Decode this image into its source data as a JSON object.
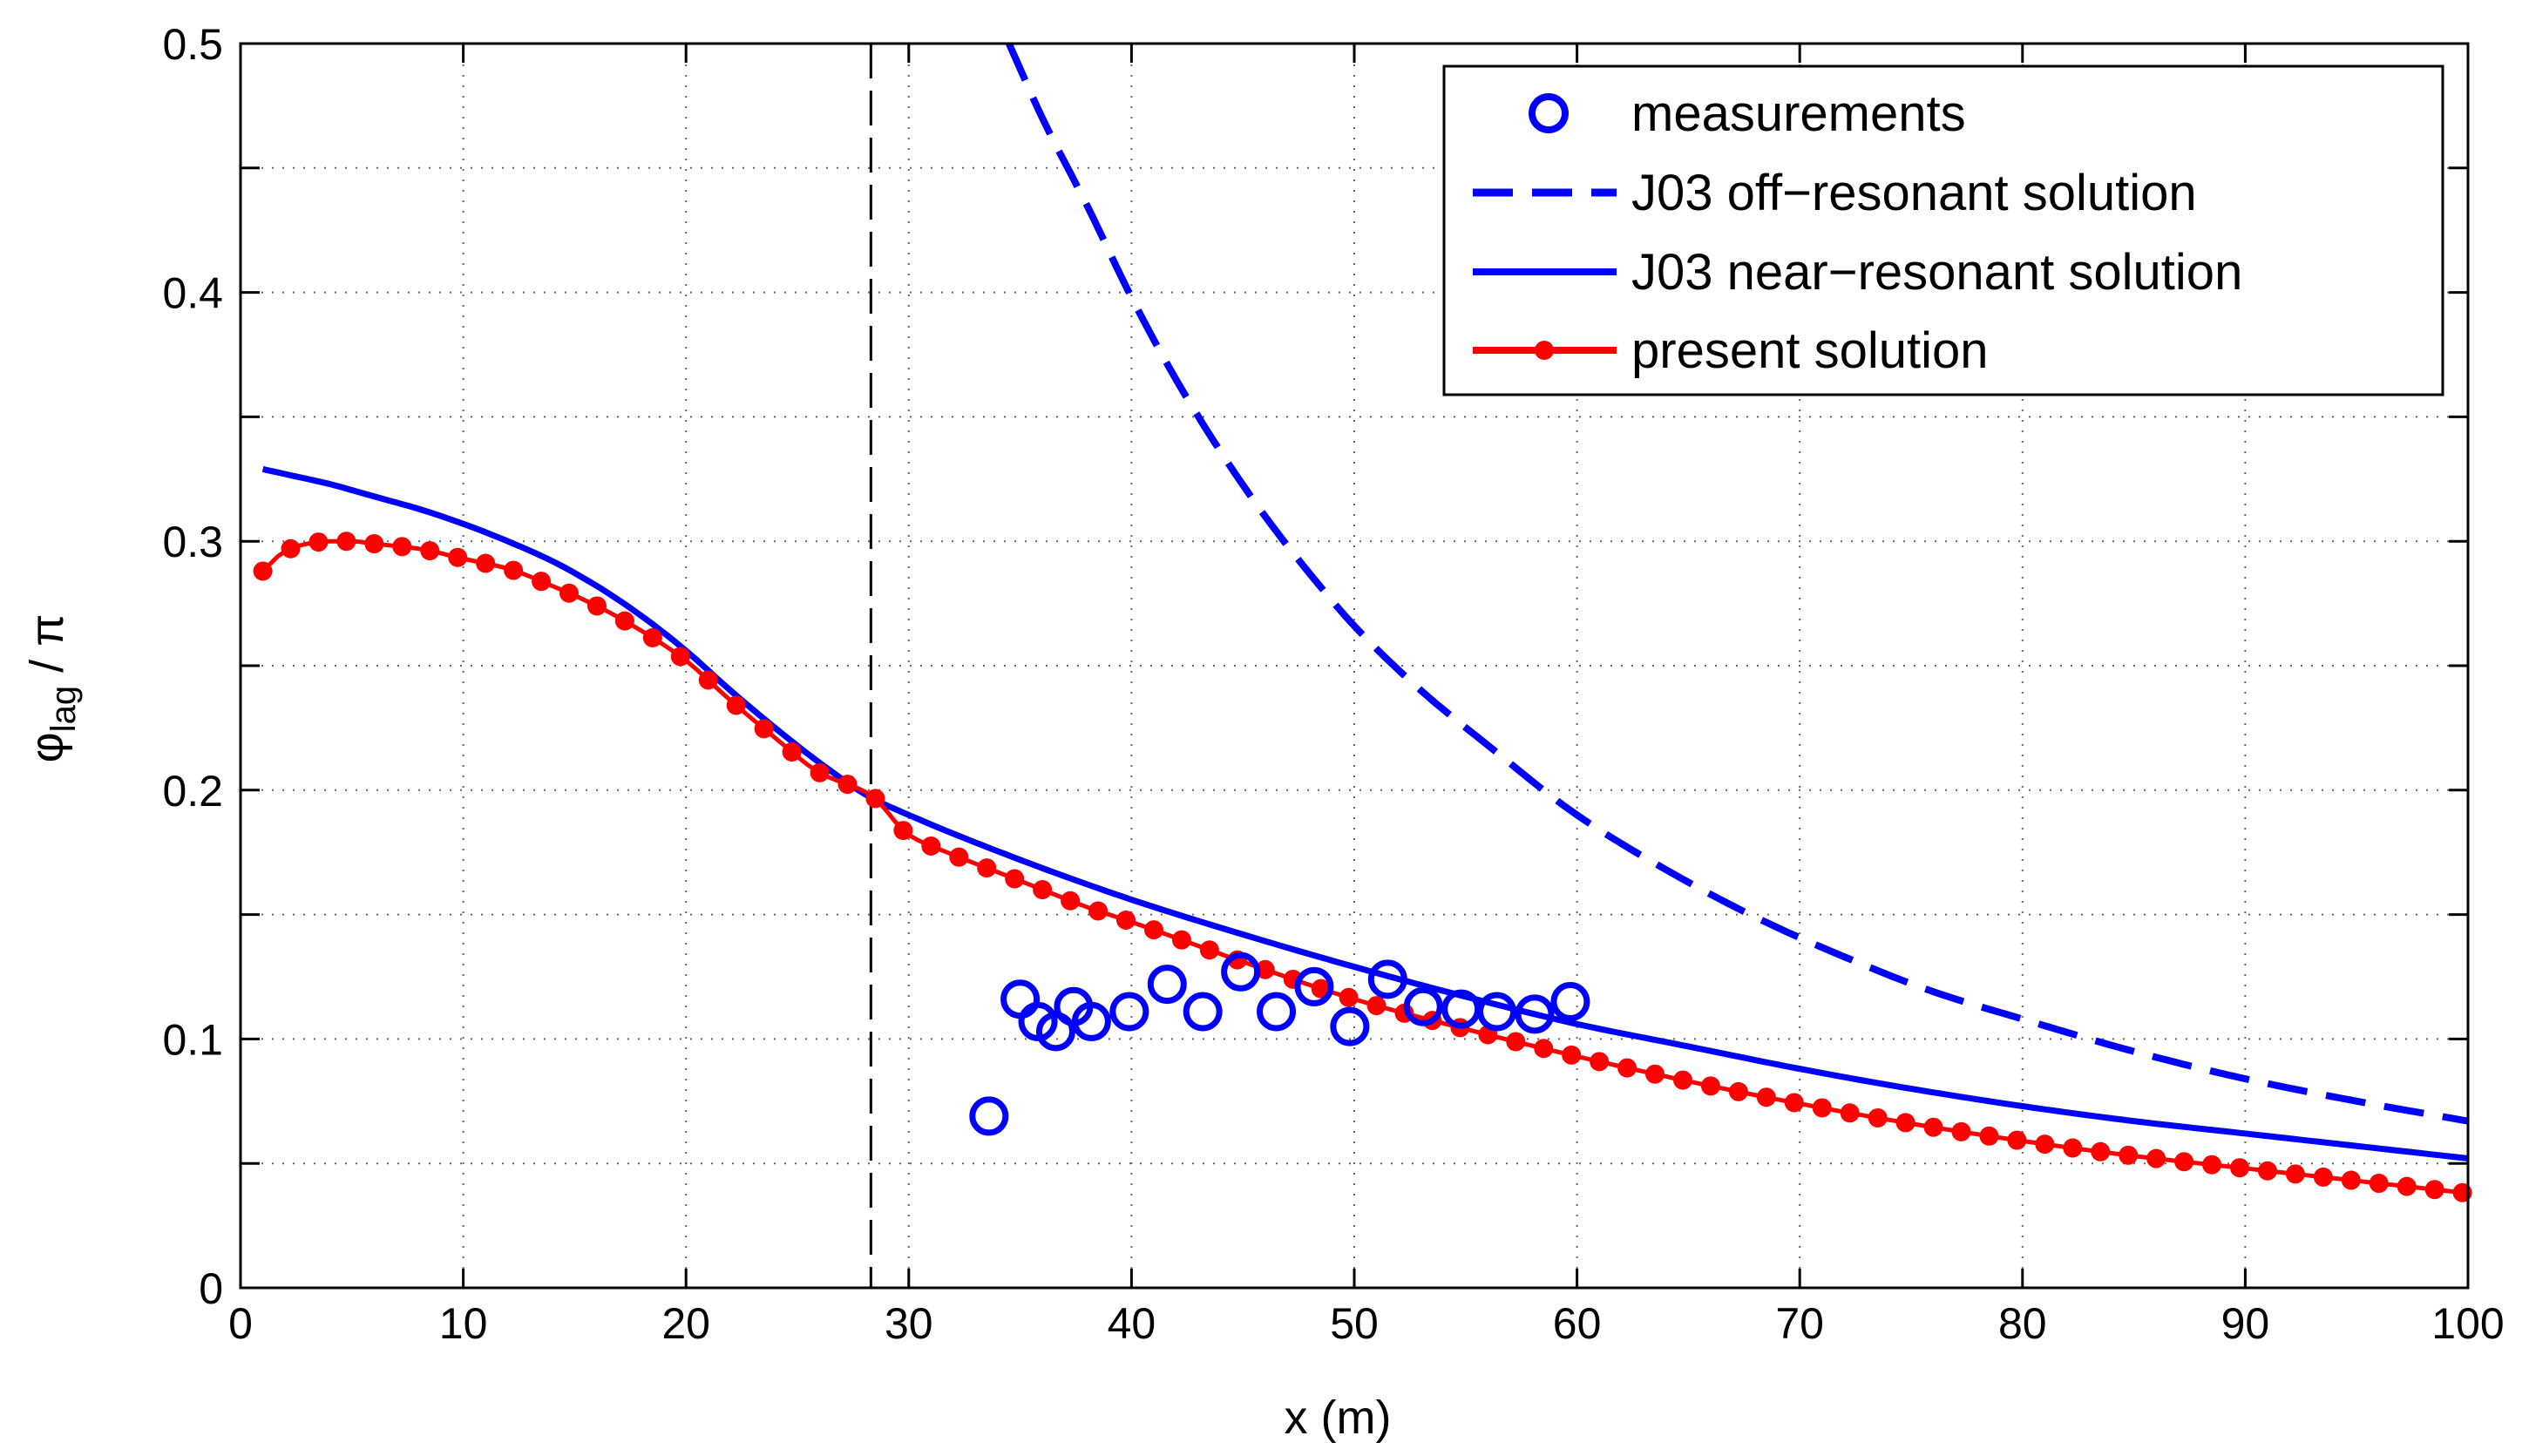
{
  "chart_data": {
    "type": "line",
    "title": "",
    "xlabel": "x (m)",
    "ylabel": {
      "base": "φ",
      "sub": "lag",
      "suffix": " / π"
    },
    "xlim": [
      0,
      100
    ],
    "ylim": [
      0,
      0.5
    ],
    "xticks": [
      0,
      10,
      20,
      30,
      40,
      50,
      60,
      70,
      80,
      90,
      100
    ],
    "yticks": [
      0,
      0.1,
      0.2,
      0.3,
      0.4,
      0.5
    ],
    "xtick_labels": [
      "0",
      "10",
      "20",
      "30",
      "40",
      "50",
      "60",
      "70",
      "80",
      "90",
      "100"
    ],
    "ytick_labels": [
      "0",
      "0.1",
      "0.2",
      "0.3",
      "0.4",
      "0.5"
    ],
    "grid": true,
    "legend_position": "top-right",
    "vline_x": 28.3,
    "colors": {
      "blue": "#0000ff",
      "red": "#ff0000",
      "black": "#000000",
      "grid": "#666666"
    },
    "series": [
      {
        "name": "measurements",
        "style": "circles",
        "color": "#0000ff",
        "x": [
          33.6,
          35.0,
          35.8,
          36.6,
          37.4,
          38.2,
          39.9,
          41.6,
          43.2,
          44.9,
          46.5,
          48.2,
          49.8,
          51.5,
          53.1,
          54.8,
          56.4,
          58.1,
          59.7
        ],
        "y": [
          0.069,
          0.116,
          0.107,
          0.103,
          0.113,
          0.107,
          0.111,
          0.122,
          0.111,
          0.127,
          0.111,
          0.121,
          0.105,
          0.124,
          0.113,
          0.112,
          0.111,
          0.11,
          0.115
        ]
      },
      {
        "name": "J03 off−resonant solution",
        "style": "dashed",
        "color": "#0000ff",
        "x": [
          34.5,
          36,
          38,
          40,
          42,
          44,
          46,
          48,
          50,
          53,
          56,
          60,
          64,
          68,
          72,
          76,
          80,
          85,
          90,
          95,
          100
        ],
        "y": [
          0.5,
          0.47,
          0.435,
          0.398,
          0.365,
          0.336,
          0.31,
          0.287,
          0.266,
          0.24,
          0.218,
          0.19,
          0.168,
          0.149,
          0.133,
          0.119,
          0.108,
          0.095,
          0.084,
          0.075,
          0.067
        ]
      },
      {
        "name": "J03 near−resonant solution",
        "style": "solid",
        "color": "#0000ff",
        "x": [
          1,
          2,
          4,
          6,
          8,
          10,
          12,
          14,
          16,
          18,
          20,
          22,
          24,
          26,
          28.3,
          30,
          35,
          40,
          45,
          50,
          55,
          60,
          65,
          70,
          75,
          80,
          85,
          90,
          95,
          100
        ],
        "y": [
          0.329,
          0.327,
          0.323,
          0.318,
          0.313,
          0.307,
          0.3,
          0.292,
          0.282,
          0.27,
          0.256,
          0.24,
          0.225,
          0.211,
          0.197,
          0.19,
          0.172,
          0.156,
          0.142,
          0.129,
          0.117,
          0.106,
          0.097,
          0.088,
          0.08,
          0.073,
          0.067,
          0.062,
          0.057,
          0.052
        ]
      },
      {
        "name": "present solution",
        "style": "line-dots",
        "color": "#ff0000",
        "x": [
          1,
          2,
          3,
          4,
          5,
          6,
          8,
          10,
          12,
          14,
          16,
          18,
          20,
          22,
          24,
          26,
          28.3,
          30,
          32,
          34,
          36,
          38,
          40,
          45,
          50,
          55,
          60,
          65,
          70,
          75,
          80,
          85,
          90,
          95,
          100
        ],
        "y": [
          0.288,
          0.296,
          0.299,
          0.3,
          0.3,
          0.299,
          0.297,
          0.293,
          0.289,
          0.282,
          0.274,
          0.264,
          0.252,
          0.236,
          0.221,
          0.207,
          0.198,
          0.182,
          0.174,
          0.167,
          0.16,
          0.153,
          0.147,
          0.131,
          0.116,
          0.104,
          0.093,
          0.083,
          0.074,
          0.066,
          0.059,
          0.053,
          0.048,
          0.043,
          0.038
        ]
      }
    ]
  }
}
